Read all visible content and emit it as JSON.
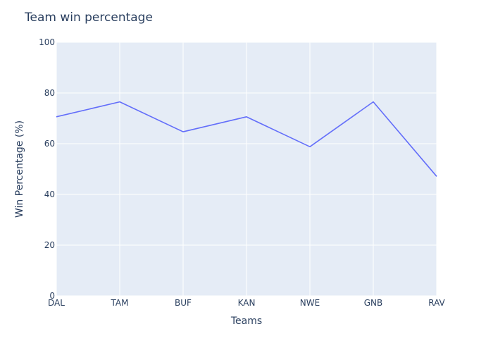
{
  "chart_data": {
    "type": "line",
    "title": "Team win percentage",
    "xlabel": "Teams",
    "ylabel": "Win Percentage (%)",
    "categories": [
      "DAL",
      "TAM",
      "BUF",
      "KAN",
      "NWE",
      "GNB",
      "RAV"
    ],
    "series": [
      {
        "values": [
          70.6,
          76.5,
          64.7,
          70.6,
          58.8,
          76.5,
          47.1
        ],
        "color": "#636efa"
      }
    ],
    "ylim": [
      0,
      100
    ],
    "yticks": [
      0,
      20,
      40,
      60,
      80,
      100
    ],
    "grid": true,
    "legend": "none",
    "colors": {
      "plot_background": "#e5ecf6",
      "grid": "#ffffff",
      "text": "#2a3f5f"
    }
  }
}
